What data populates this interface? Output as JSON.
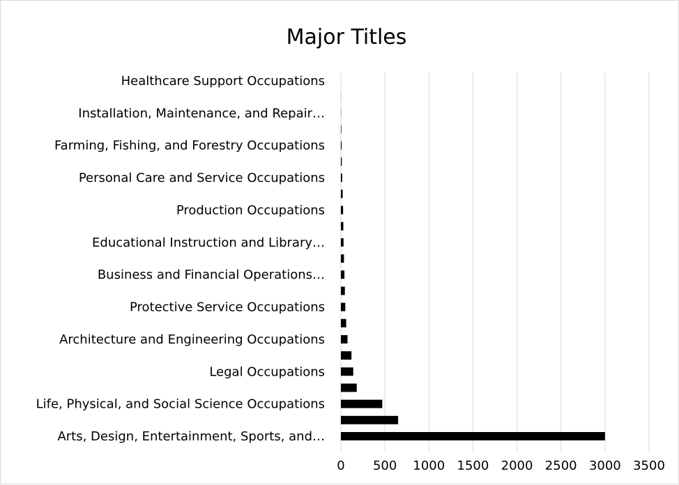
{
  "chart_data": {
    "type": "bar",
    "orientation": "horizontal",
    "title": "Major Titles",
    "xlabel": "",
    "ylabel": "",
    "xlim": [
      0,
      3500
    ],
    "x_ticks": [
      "0",
      "500",
      "1000",
      "1500",
      "2000",
      "2500",
      "3000",
      "3500"
    ],
    "grid": "vertical",
    "legend": "none",
    "bar_color": "#000000",
    "grid_color": "#d9d9d9",
    "categories": [
      "Arts, Design, Entertainment, Sports, and…",
      "",
      "Life, Physical, and Social Science Occupations",
      "",
      "Legal Occupations",
      "",
      "Architecture and Engineering Occupations",
      "",
      "Protective Service Occupations",
      "",
      "Business and Financial Operations…",
      "",
      "Educational Instruction and Library…",
      "",
      "Production Occupations",
      "",
      "Personal Care and Service Occupations",
      "",
      "Farming, Fishing, and Forestry Occupations",
      "",
      "Installation, Maintenance, and Repair…",
      "",
      "Healthcare Support Occupations"
    ],
    "values": [
      3000,
      650,
      470,
      180,
      140,
      120,
      75,
      60,
      50,
      45,
      40,
      35,
      30,
      28,
      25,
      20,
      15,
      10,
      8,
      5,
      2,
      1,
      0
    ]
  }
}
